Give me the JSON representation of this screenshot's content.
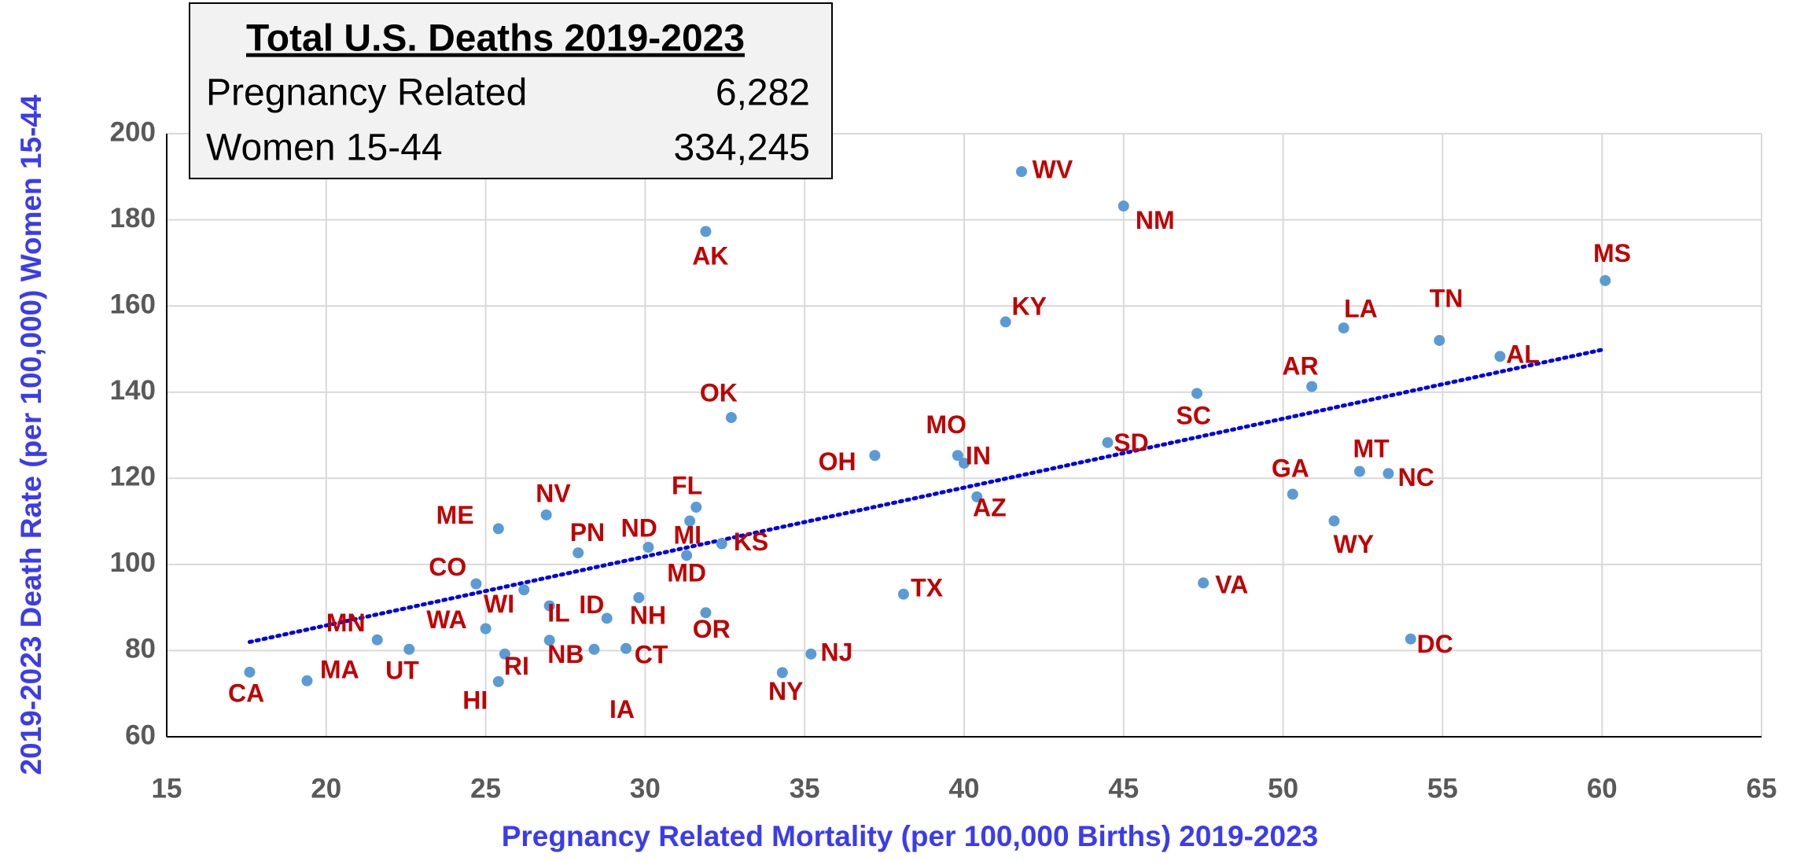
{
  "chart_data": {
    "type": "scatter",
    "xlabel": "Pregnancy Related Mortality (per 100,000 Births) 2019-2023",
    "ylabel": "2019-2023 Death Rate (per 100,000) Women 15-44",
    "point_labels": [
      "CA",
      "MA",
      "MN",
      "UT",
      "WA",
      "WI",
      "CO",
      "ME",
      "NV",
      "HI",
      "RI",
      "IL",
      "NB",
      "PN",
      "ID",
      "IA",
      "NH",
      "CT",
      "ND",
      "MI",
      "MD",
      "FL",
      "KS",
      "OR",
      "AK",
      "OK",
      "NY",
      "NJ",
      "OH",
      "TX",
      "MO",
      "IN",
      "AZ",
      "KY",
      "WV",
      "NM",
      "SD",
      "SC",
      "VA",
      "GA",
      "AR",
      "LA",
      "WY",
      "MT",
      "NC",
      "DC",
      "TN",
      "AL",
      "MS"
    ],
    "x": [
      17.6,
      19.4,
      21.6,
      22.6,
      25.0,
      26.2,
      24.7,
      25.4,
      26.9,
      25.4,
      25.6,
      27.0,
      27.0,
      27.9,
      28.8,
      28.4,
      29.8,
      29.4,
      30.1,
      31.4,
      31.3,
      31.6,
      32.4,
      31.9,
      31.9,
      32.7,
      34.3,
      35.2,
      37.2,
      38.1,
      39.8,
      40.0,
      40.4,
      41.3,
      41.8,
      45.0,
      44.5,
      47.3,
      47.5,
      50.3,
      50.9,
      51.9,
      51.6,
      52.4,
      53.3,
      54.0,
      54.9,
      56.8,
      60.1
    ],
    "values": [
      75,
      73,
      82.5,
      80.3,
      85.1,
      94.1,
      95.5,
      108.3,
      111.5,
      72.8,
      79.2,
      90.4,
      82.4,
      102.7,
      87.5,
      80.3,
      92.3,
      80.5,
      104,
      110.1,
      102.1,
      113.3,
      104.8,
      88.8,
      177.3,
      134.1,
      74.9,
      79.2,
      125.3,
      93.1,
      125.3,
      123.5,
      115.7,
      156.3,
      191.2,
      183.2,
      128.3,
      139.7,
      95.7,
      116.3,
      141.3,
      154.9,
      110.1,
      121.6,
      121.1,
      82.7,
      152,
      148.3,
      165.9
    ],
    "color": "#5b9bd5",
    "label_color": "#c00000",
    "trendline": {
      "x": [
        17.6,
        60.1
      ],
      "y": [
        82,
        150
      ],
      "color": "#0000e0"
    },
    "xlim": [
      15,
      65
    ],
    "xticks": [
      15,
      20,
      25,
      30,
      35,
      40,
      45,
      50,
      55,
      60,
      65
    ],
    "ylim": [
      60,
      200
    ],
    "yticks": [
      60,
      80,
      100,
      120,
      140,
      160,
      180,
      200
    ],
    "grid": true
  },
  "summary": {
    "title": "Total U.S. Deaths 2019-2023",
    "rows": [
      [
        "Pregnancy Related",
        "6,282"
      ],
      [
        "Women 15-44",
        "334,245"
      ]
    ]
  }
}
